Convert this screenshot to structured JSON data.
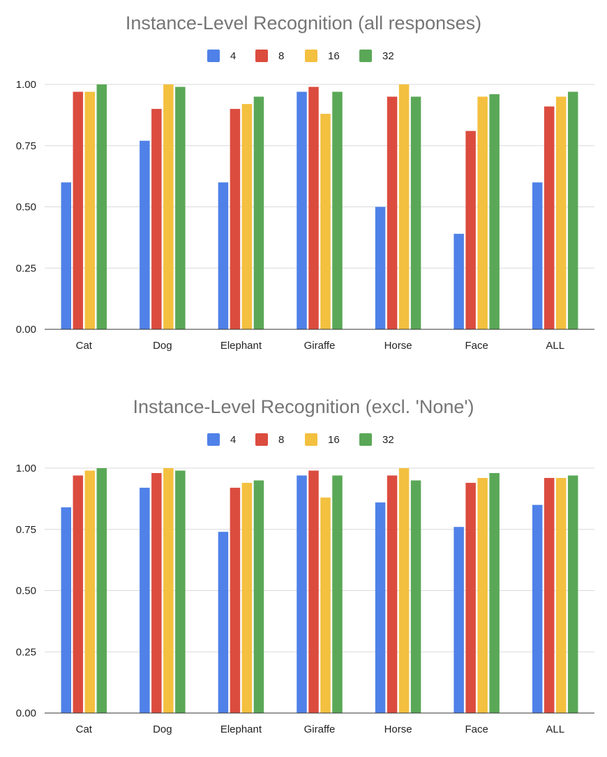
{
  "chart_data": [
    {
      "type": "bar",
      "title": "Instance-Level Recognition (all responses)",
      "categories": [
        "Cat",
        "Dog",
        "Elephant",
        "Giraffe",
        "Horse",
        "Face",
        "ALL"
      ],
      "series": [
        {
          "name": "4",
          "color": "#4F81E8",
          "values": [
            0.6,
            0.77,
            0.6,
            0.97,
            0.5,
            0.39,
            0.6
          ]
        },
        {
          "name": "8",
          "color": "#DB4C3F",
          "values": [
            0.97,
            0.9,
            0.9,
            0.99,
            0.95,
            0.81,
            0.91
          ]
        },
        {
          "name": "16",
          "color": "#F3C03F",
          "values": [
            0.97,
            1.0,
            0.92,
            0.88,
            1.0,
            0.95,
            0.95
          ]
        },
        {
          "name": "32",
          "color": "#5AA857",
          "values": [
            1.0,
            0.99,
            0.95,
            0.97,
            0.95,
            0.96,
            0.97
          ]
        }
      ],
      "yticks": [
        "0.00",
        "0.25",
        "0.50",
        "0.75",
        "1.00"
      ],
      "ylim": [
        0,
        1
      ],
      "grid": true,
      "legend_position": "top"
    },
    {
      "type": "bar",
      "title": "Instance-Level Recognition (excl. 'None')",
      "categories": [
        "Cat",
        "Dog",
        "Elephant",
        "Giraffe",
        "Horse",
        "Face",
        "ALL"
      ],
      "series": [
        {
          "name": "4",
          "color": "#4F81E8",
          "values": [
            0.84,
            0.92,
            0.74,
            0.97,
            0.86,
            0.76,
            0.85
          ]
        },
        {
          "name": "8",
          "color": "#DB4C3F",
          "values": [
            0.97,
            0.98,
            0.92,
            0.99,
            0.97,
            0.94,
            0.96
          ]
        },
        {
          "name": "16",
          "color": "#F3C03F",
          "values": [
            0.99,
            1.0,
            0.94,
            0.88,
            1.0,
            0.96,
            0.96
          ]
        },
        {
          "name": "32",
          "color": "#5AA857",
          "values": [
            1.0,
            0.99,
            0.95,
            0.97,
            0.95,
            0.98,
            0.97
          ]
        }
      ],
      "yticks": [
        "0.00",
        "0.25",
        "0.50",
        "0.75",
        "1.00"
      ],
      "ylim": [
        0,
        1
      ],
      "grid": true,
      "legend_position": "top"
    }
  ]
}
